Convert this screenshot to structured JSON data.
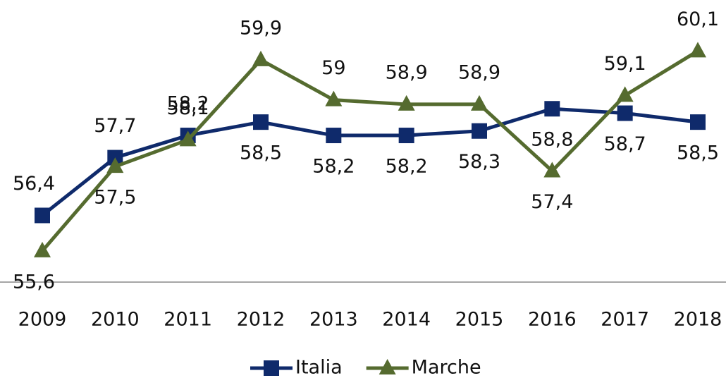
{
  "chart_data": {
    "type": "line",
    "categories": [
      "2009",
      "2010",
      "2011",
      "2012",
      "2013",
      "2014",
      "2015",
      "2016",
      "2017",
      "2018"
    ],
    "series": [
      {
        "name": "Italia",
        "color": "#0f2a6b",
        "marker": "square",
        "values": [
          56.4,
          57.7,
          58.2,
          58.5,
          58.2,
          58.2,
          58.3,
          58.8,
          58.7,
          58.5
        ],
        "value_labels": [
          "56,4",
          "57,7",
          "58,2",
          "58,5",
          "58,2",
          "58,2",
          "58,3",
          "58,8",
          "58,7",
          "58,5"
        ]
      },
      {
        "name": "Marche",
        "color": "#556b2f",
        "marker": "triangle",
        "values": [
          55.6,
          57.5,
          58.1,
          59.9,
          59,
          58.9,
          58.9,
          57.4,
          59.1,
          60.1
        ],
        "value_labels": [
          "55,6",
          "57,5",
          "58,1",
          "59,9",
          "59",
          "58,9",
          "58,9",
          "57,4",
          "59,1",
          "60,1"
        ]
      }
    ],
    "ylim": [
      54.9,
      61.2
    ],
    "legend": "bottom"
  }
}
